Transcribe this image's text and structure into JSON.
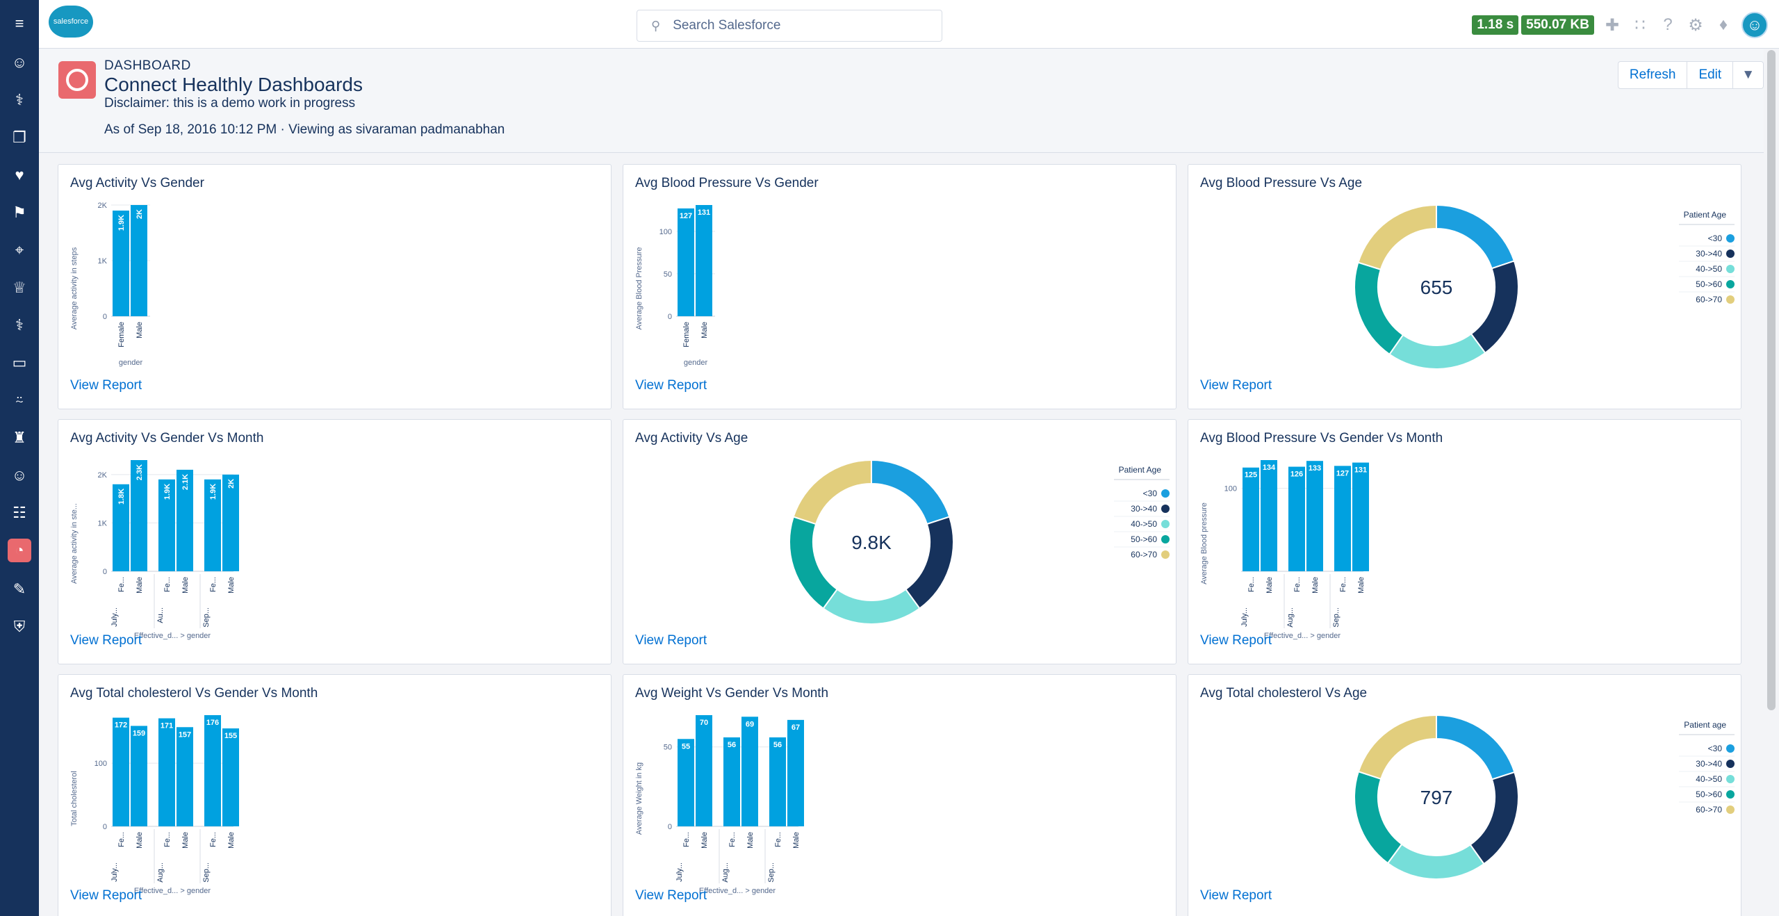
{
  "header": {
    "logo_text": "salesforce",
    "search_placeholder": "Search Salesforce",
    "perf_time": "1.18 s",
    "perf_size": "550.07 KB"
  },
  "page": {
    "eyebrow": "DASHBOARD",
    "title": "Connect Healthly Dashboards",
    "disclaimer": "Disclaimer: this is a demo work in progress",
    "as_of": "As of Sep 18, 2016 10:12 PM · Viewing as sivaraman padmanabhan",
    "buttons": {
      "refresh": "Refresh",
      "edit": "Edit"
    }
  },
  "view_report": "View Report",
  "colors": {
    "bar": "#00a1e0",
    "c1": "#1b9fdf",
    "c2": "#16325c",
    "c3": "#76ded9",
    "c4": "#08a69e",
    "c5": "#e2ce7d",
    "link": "#0070d2"
  },
  "chart_data": [
    {
      "type": "bar",
      "title": "Avg Activity Vs Gender",
      "ylabel": "Average activity in steps",
      "xlabel": "gender",
      "ylim": [
        0,
        2000
      ],
      "ytick_labels": [
        "0",
        "1K",
        "2K"
      ],
      "categories": [
        "Female",
        "Male"
      ],
      "values": [
        1900,
        2000
      ],
      "value_labels": [
        "1.9K",
        "2K"
      ]
    },
    {
      "type": "bar",
      "title": "Avg Blood Pressure Vs Gender",
      "ylabel": "Average Blood Pressure",
      "xlabel": "gender",
      "ylim": [
        0,
        131
      ],
      "ytick_labels": [
        "0",
        "50",
        "100"
      ],
      "categories": [
        "Female",
        "Male"
      ],
      "values": [
        127,
        131
      ],
      "value_labels": [
        "127",
        "131"
      ]
    },
    {
      "type": "pie",
      "title": "Avg Blood Pressure Vs Age",
      "center_label": "655",
      "legend_title": "Patient Age",
      "legend": "right",
      "categories": [
        "<30",
        "30->40",
        "40->50",
        "50->60",
        "60->70"
      ],
      "values": [
        130,
        131,
        130,
        132,
        132
      ]
    },
    {
      "type": "bar",
      "title": "Avg Activity Vs Gender Vs Month",
      "ylabel": "Average activity in ste...",
      "xlabel": "Effective_d... > gender",
      "ylim": [
        0,
        2300
      ],
      "ytick_labels": [
        "0",
        "1K",
        "2K"
      ],
      "groups": [
        "July...",
        "Au...",
        "Sep..."
      ],
      "categories": [
        "Fe...",
        "Male",
        "Fe...",
        "Male",
        "Fe...",
        "Male"
      ],
      "values": [
        1800,
        2300,
        1900,
        2100,
        1900,
        2000
      ],
      "value_labels": [
        "1.8K",
        "2.3K",
        "1.9K",
        "2.1K",
        "1.9K",
        "2K"
      ]
    },
    {
      "type": "pie",
      "title": "Avg Activity Vs Age",
      "center_label": "9.8K",
      "legend_title": "Patient Age",
      "legend": "right",
      "categories": [
        "<30",
        "30->40",
        "40->50",
        "50->60",
        "60->70"
      ],
      "values": [
        1960,
        1960,
        1960,
        1960,
        1960
      ]
    },
    {
      "type": "bar",
      "title": "Avg Blood Pressure Vs Gender Vs Month",
      "ylabel": "Average Blood pressure",
      "xlabel": "Effective_d... > gender",
      "ylim": [
        0,
        134
      ],
      "ytick_labels": [
        "100"
      ],
      "groups": [
        "July...",
        "Aug...",
        "Sep..."
      ],
      "categories": [
        "Fe...",
        "Male",
        "Fe...",
        "Male",
        "Fe...",
        "Male"
      ],
      "values": [
        125,
        134,
        126,
        133,
        127,
        131
      ],
      "value_labels": [
        "125",
        "134",
        "126",
        "133",
        "127",
        "131"
      ]
    },
    {
      "type": "bar",
      "title": "Avg Total cholesterol Vs Gender Vs Month",
      "ylabel": "Total cholesterol",
      "xlabel": "Effective_d... > gender",
      "ylim": [
        0,
        176
      ],
      "ytick_labels": [
        "0",
        "100"
      ],
      "groups": [
        "July...",
        "Aug...",
        "Sep..."
      ],
      "categories": [
        "Fe...",
        "Male",
        "Fe...",
        "Male",
        "Fe...",
        "Male"
      ],
      "values": [
        172,
        159,
        171,
        157,
        176,
        155
      ],
      "value_labels": [
        "172",
        "159",
        "171",
        "157",
        "176",
        "155"
      ]
    },
    {
      "type": "bar",
      "title": "Avg Weight Vs Gender Vs Month",
      "ylabel": "Average Weight in kg",
      "xlabel": "Effective_d... > gender",
      "ylim": [
        0,
        70
      ],
      "ytick_labels": [
        "0",
        "50"
      ],
      "groups": [
        "July...",
        "Aug...",
        "Sep..."
      ],
      "categories": [
        "Fe...",
        "Male",
        "Fe...",
        "Male",
        "Fe...",
        "Male"
      ],
      "values": [
        55,
        70,
        56,
        69,
        56,
        67
      ],
      "value_labels": [
        "55",
        "70",
        "56",
        "69",
        "56",
        "67"
      ]
    },
    {
      "type": "pie",
      "title": "Avg Total cholesterol Vs Age",
      "center_label": "797",
      "legend_title": "Patient age",
      "legend": "right",
      "categories": [
        "<30",
        "30->40",
        "40->50",
        "50->60",
        "60->70"
      ],
      "values": [
        160,
        160,
        159,
        159,
        159
      ]
    }
  ],
  "rail_icons": [
    "menu-icon",
    "contacts-icon",
    "stethoscope-icon",
    "document-icon",
    "heart-icon",
    "flag-icon",
    "telescope-icon",
    "trophy-icon",
    "stethoscope-icon",
    "laptop-icon",
    "thermometer-icon",
    "castle-icon",
    "contacts-icon",
    "clipboard-icon",
    "dashboard-icon",
    "pencil-icon",
    "shield-icon"
  ]
}
